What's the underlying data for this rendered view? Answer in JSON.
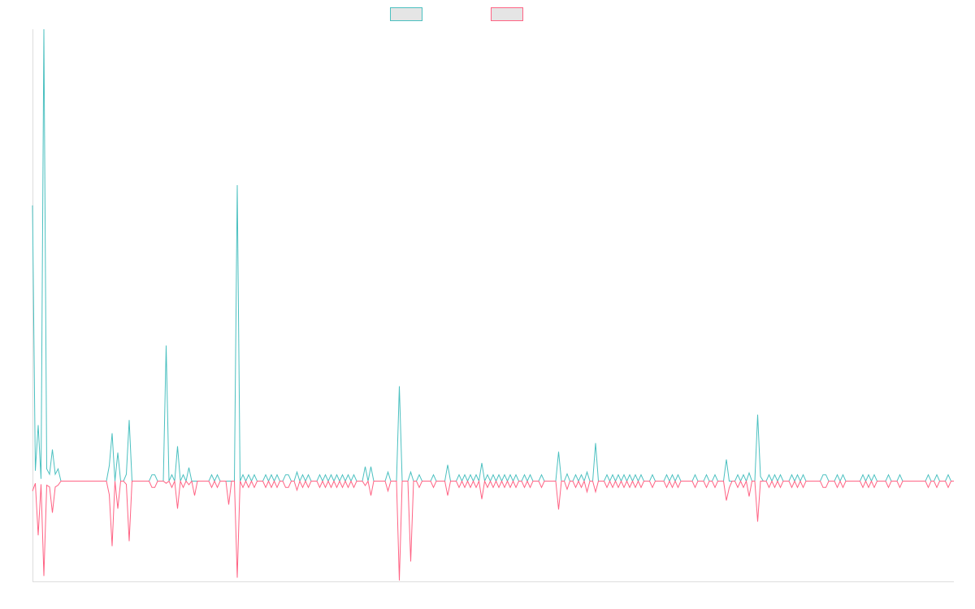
{
  "chart_data": {
    "type": "line",
    "title": "",
    "xlabel": "",
    "ylabel": "",
    "ylim": [
      -22.2,
      100
    ],
    "grid": false,
    "legend_placement": "top-center",
    "length": 325,
    "series": [
      {
        "name": "",
        "color": "#4bc0c0",
        "diamond_value": 1.4,
        "points": [
          [
            0,
            61
          ],
          [
            1,
            2.3
          ],
          [
            2,
            12.4
          ],
          [
            3,
            0.5
          ],
          [
            4,
            100
          ],
          [
            5,
            2.7
          ],
          [
            6,
            1.5
          ],
          [
            7,
            7
          ],
          [
            8,
            1.5
          ],
          [
            9,
            2.7
          ],
          [
            27,
            3.4
          ],
          [
            28,
            10.6
          ],
          [
            30,
            6.3
          ],
          [
            33,
            1.5
          ],
          [
            34,
            13.5
          ],
          [
            47,
            30
          ],
          [
            51,
            7.7
          ],
          [
            55,
            3
          ],
          [
            72,
            65.5
          ],
          [
            93,
            2
          ],
          [
            117,
            3.2
          ],
          [
            119,
            3.2
          ],
          [
            125,
            2
          ],
          [
            129,
            21
          ],
          [
            133,
            2
          ],
          [
            146,
            3.6
          ],
          [
            158,
            4
          ],
          [
            185,
            6.5
          ],
          [
            188,
            1.6
          ],
          [
            195,
            2
          ],
          [
            198,
            8.4
          ],
          [
            244,
            4.8
          ],
          [
            252,
            1.8
          ],
          [
            255,
            14.7
          ],
          [
            256,
            1
          ]
        ]
      },
      {
        "name": "",
        "color": "#ff6384",
        "diamond_value": -1.4,
        "points": [
          [
            0,
            -2.2
          ],
          [
            1,
            -0.5
          ],
          [
            2,
            -12
          ],
          [
            3,
            -0.7
          ],
          [
            4,
            -21
          ],
          [
            5,
            -0.9
          ],
          [
            6,
            -1.3
          ],
          [
            7,
            -7
          ],
          [
            8,
            -1.3
          ],
          [
            9,
            -0.9
          ],
          [
            27,
            -3
          ],
          [
            28,
            -14.4
          ],
          [
            30,
            -6.1
          ],
          [
            33,
            -0.7
          ],
          [
            34,
            -13.3
          ],
          [
            47,
            -0.5
          ],
          [
            51,
            -6.1
          ],
          [
            55,
            -0.8
          ],
          [
            57,
            -3.2
          ],
          [
            69,
            -5.2
          ],
          [
            72,
            -21.4
          ],
          [
            93,
            -2
          ],
          [
            117,
            -1
          ],
          [
            119,
            -3.2
          ],
          [
            125,
            -2.2
          ],
          [
            129,
            -22
          ],
          [
            133,
            -17.8
          ],
          [
            146,
            -3.2
          ],
          [
            158,
            -4
          ],
          [
            185,
            -6.3
          ],
          [
            188,
            -1.8
          ],
          [
            195,
            -2.4
          ],
          [
            198,
            -2.4
          ],
          [
            244,
            -4.3
          ],
          [
            245,
            -1.5
          ],
          [
            252,
            -3.4
          ],
          [
            255,
            -9
          ]
        ]
      }
    ],
    "diamond_indices": [
      42,
      43,
      49,
      53,
      63,
      65,
      74,
      76,
      78,
      82,
      84,
      86,
      89,
      90,
      95,
      97,
      101,
      103,
      105,
      107,
      109,
      111,
      113,
      136,
      141,
      150,
      152,
      154,
      156,
      160,
      162,
      164,
      166,
      168,
      170,
      173,
      175,
      179,
      191,
      193,
      202,
      204,
      206,
      208,
      210,
      212,
      214,
      218,
      223,
      225,
      227,
      233,
      237,
      240,
      248,
      250,
      259,
      261,
      263,
      267,
      269,
      271,
      278,
      279,
      283,
      285,
      292,
      294,
      296,
      301,
      305,
      315,
      318,
      322
    ]
  }
}
